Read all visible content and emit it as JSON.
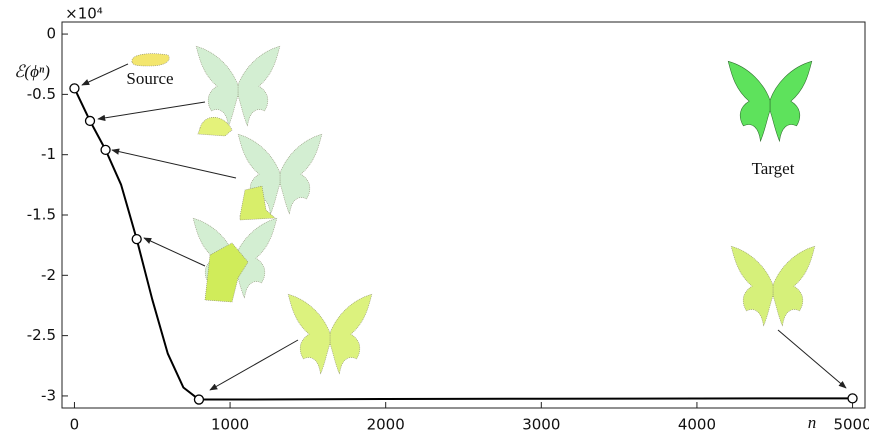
{
  "chart_data": {
    "type": "line",
    "y_axis_label": "ℰ(ϕⁿ)",
    "x_axis_label": "n",
    "y_multiplier": "×10⁴",
    "annotations": [
      "Source",
      "Target"
    ],
    "line": {
      "x": [
        0,
        100,
        200,
        300,
        400,
        500,
        600,
        700,
        800,
        1000,
        2000,
        3000,
        4000,
        5000
      ],
      "y": [
        -0.45,
        -0.72,
        -0.96,
        -1.25,
        -1.7,
        -2.2,
        -2.65,
        -2.93,
        -3.03,
        -3.03,
        -3.025,
        -3.023,
        -3.021,
        -3.02
      ],
      "color": "#000000"
    },
    "points": {
      "x": [
        0,
        100,
        200,
        400,
        800,
        5000
      ],
      "y": [
        -0.45,
        -0.72,
        -0.96,
        -1.7,
        -3.03,
        -3.02
      ]
    },
    "xlim": [
      -80,
      5080
    ],
    "ylim": [
      -3.1,
      0.1
    ],
    "xticks": [
      0,
      1000,
      2000,
      3000,
      4000,
      5000
    ],
    "yticks": [
      0,
      -0.5,
      -1,
      -1.5,
      -2,
      -2.5,
      -3
    ]
  }
}
